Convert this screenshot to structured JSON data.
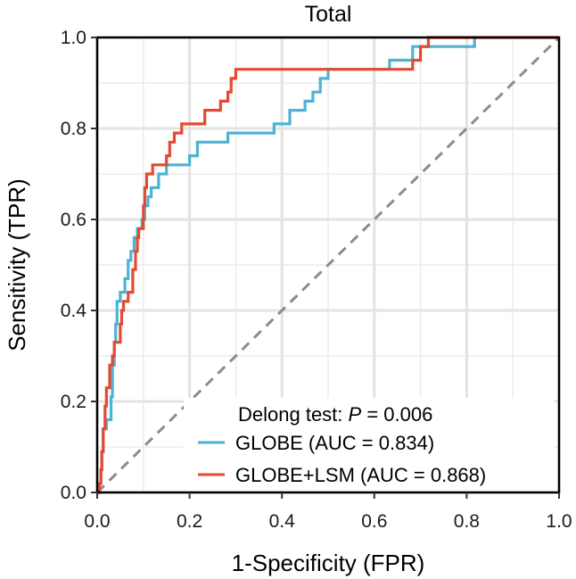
{
  "chart_data": {
    "type": "line",
    "title": "Total",
    "xlabel": "1-Specificity (FPR)",
    "ylabel": "Sensitivity (TPR)",
    "xlim": [
      0,
      1
    ],
    "ylim": [
      0,
      1
    ],
    "x_ticks": [
      "0.0",
      "0.2",
      "0.4",
      "0.6",
      "0.8",
      "1.0"
    ],
    "y_ticks": [
      "0.0",
      "0.2",
      "0.4",
      "0.6",
      "0.8",
      "1.0"
    ],
    "grid": true,
    "reference_line": {
      "from": [
        0,
        0
      ],
      "to": [
        1,
        1
      ],
      "style": "dashed",
      "color": "#8c8c8c"
    },
    "legend": {
      "position": "bottom-right",
      "header_prefix": "Delong test: ",
      "header_p": "P",
      "header_suffix": " = 0.006"
    },
    "series": [
      {
        "name": "GLOBE (AUC = 0.834)",
        "color": "#4eb3d3",
        "points": [
          [
            0,
            0
          ],
          [
            0.005,
            0
          ],
          [
            0.005,
            0.02
          ],
          [
            0.008,
            0.02
          ],
          [
            0.008,
            0.05
          ],
          [
            0.01,
            0.05
          ],
          [
            0.01,
            0.09
          ],
          [
            0.013,
            0.09
          ],
          [
            0.013,
            0.14
          ],
          [
            0.02,
            0.14
          ],
          [
            0.02,
            0.16
          ],
          [
            0.03,
            0.16
          ],
          [
            0.03,
            0.21
          ],
          [
            0.033,
            0.21
          ],
          [
            0.033,
            0.28
          ],
          [
            0.037,
            0.28
          ],
          [
            0.037,
            0.33
          ],
          [
            0.04,
            0.33
          ],
          [
            0.04,
            0.37
          ],
          [
            0.043,
            0.37
          ],
          [
            0.043,
            0.42
          ],
          [
            0.05,
            0.42
          ],
          [
            0.05,
            0.44
          ],
          [
            0.06,
            0.44
          ],
          [
            0.06,
            0.47
          ],
          [
            0.067,
            0.47
          ],
          [
            0.067,
            0.51
          ],
          [
            0.073,
            0.51
          ],
          [
            0.073,
            0.53
          ],
          [
            0.08,
            0.53
          ],
          [
            0.08,
            0.56
          ],
          [
            0.087,
            0.56
          ],
          [
            0.087,
            0.58
          ],
          [
            0.097,
            0.58
          ],
          [
            0.097,
            0.6
          ],
          [
            0.103,
            0.6
          ],
          [
            0.103,
            0.63
          ],
          [
            0.11,
            0.63
          ],
          [
            0.11,
            0.65
          ],
          [
            0.117,
            0.65
          ],
          [
            0.117,
            0.67
          ],
          [
            0.133,
            0.67
          ],
          [
            0.133,
            0.7
          ],
          [
            0.15,
            0.7
          ],
          [
            0.15,
            0.72
          ],
          [
            0.2,
            0.72
          ],
          [
            0.2,
            0.74
          ],
          [
            0.217,
            0.74
          ],
          [
            0.217,
            0.77
          ],
          [
            0.283,
            0.77
          ],
          [
            0.283,
            0.79
          ],
          [
            0.383,
            0.79
          ],
          [
            0.383,
            0.81
          ],
          [
            0.417,
            0.81
          ],
          [
            0.417,
            0.84
          ],
          [
            0.45,
            0.84
          ],
          [
            0.45,
            0.86
          ],
          [
            0.467,
            0.86
          ],
          [
            0.467,
            0.88
          ],
          [
            0.483,
            0.88
          ],
          [
            0.483,
            0.91
          ],
          [
            0.5,
            0.91
          ],
          [
            0.5,
            0.93
          ],
          [
            0.633,
            0.93
          ],
          [
            0.633,
            0.95
          ],
          [
            0.683,
            0.95
          ],
          [
            0.683,
            0.98
          ],
          [
            0.817,
            0.98
          ],
          [
            0.817,
            1
          ],
          [
            1,
            1
          ]
        ]
      },
      {
        "name": "GLOBE+LSM (AUC = 0.868)",
        "color": "#e34a33",
        "points": [
          [
            0,
            0
          ],
          [
            0.005,
            0
          ],
          [
            0.005,
            0.02
          ],
          [
            0.008,
            0.02
          ],
          [
            0.008,
            0.05
          ],
          [
            0.01,
            0.05
          ],
          [
            0.01,
            0.09
          ],
          [
            0.013,
            0.09
          ],
          [
            0.013,
            0.14
          ],
          [
            0.017,
            0.14
          ],
          [
            0.017,
            0.19
          ],
          [
            0.02,
            0.19
          ],
          [
            0.02,
            0.23
          ],
          [
            0.027,
            0.23
          ],
          [
            0.027,
            0.28
          ],
          [
            0.033,
            0.28
          ],
          [
            0.033,
            0.3
          ],
          [
            0.037,
            0.3
          ],
          [
            0.037,
            0.33
          ],
          [
            0.05,
            0.33
          ],
          [
            0.05,
            0.37
          ],
          [
            0.053,
            0.37
          ],
          [
            0.053,
            0.4
          ],
          [
            0.057,
            0.4
          ],
          [
            0.057,
            0.42
          ],
          [
            0.067,
            0.42
          ],
          [
            0.067,
            0.44
          ],
          [
            0.077,
            0.44
          ],
          [
            0.077,
            0.49
          ],
          [
            0.083,
            0.49
          ],
          [
            0.083,
            0.53
          ],
          [
            0.087,
            0.53
          ],
          [
            0.087,
            0.56
          ],
          [
            0.09,
            0.56
          ],
          [
            0.09,
            0.58
          ],
          [
            0.1,
            0.58
          ],
          [
            0.1,
            0.63
          ],
          [
            0.103,
            0.63
          ],
          [
            0.103,
            0.67
          ],
          [
            0.107,
            0.67
          ],
          [
            0.107,
            0.7
          ],
          [
            0.12,
            0.7
          ],
          [
            0.12,
            0.72
          ],
          [
            0.15,
            0.72
          ],
          [
            0.15,
            0.74
          ],
          [
            0.157,
            0.74
          ],
          [
            0.157,
            0.77
          ],
          [
            0.167,
            0.77
          ],
          [
            0.167,
            0.79
          ],
          [
            0.183,
            0.79
          ],
          [
            0.183,
            0.81
          ],
          [
            0.233,
            0.81
          ],
          [
            0.233,
            0.84
          ],
          [
            0.267,
            0.84
          ],
          [
            0.267,
            0.86
          ],
          [
            0.283,
            0.86
          ],
          [
            0.283,
            0.88
          ],
          [
            0.29,
            0.88
          ],
          [
            0.29,
            0.91
          ],
          [
            0.3,
            0.91
          ],
          [
            0.3,
            0.93
          ],
          [
            0.683,
            0.93
          ],
          [
            0.683,
            0.95
          ],
          [
            0.7,
            0.95
          ],
          [
            0.7,
            0.98
          ],
          [
            0.717,
            0.98
          ],
          [
            0.717,
            1
          ],
          [
            1,
            1
          ]
        ]
      }
    ]
  }
}
